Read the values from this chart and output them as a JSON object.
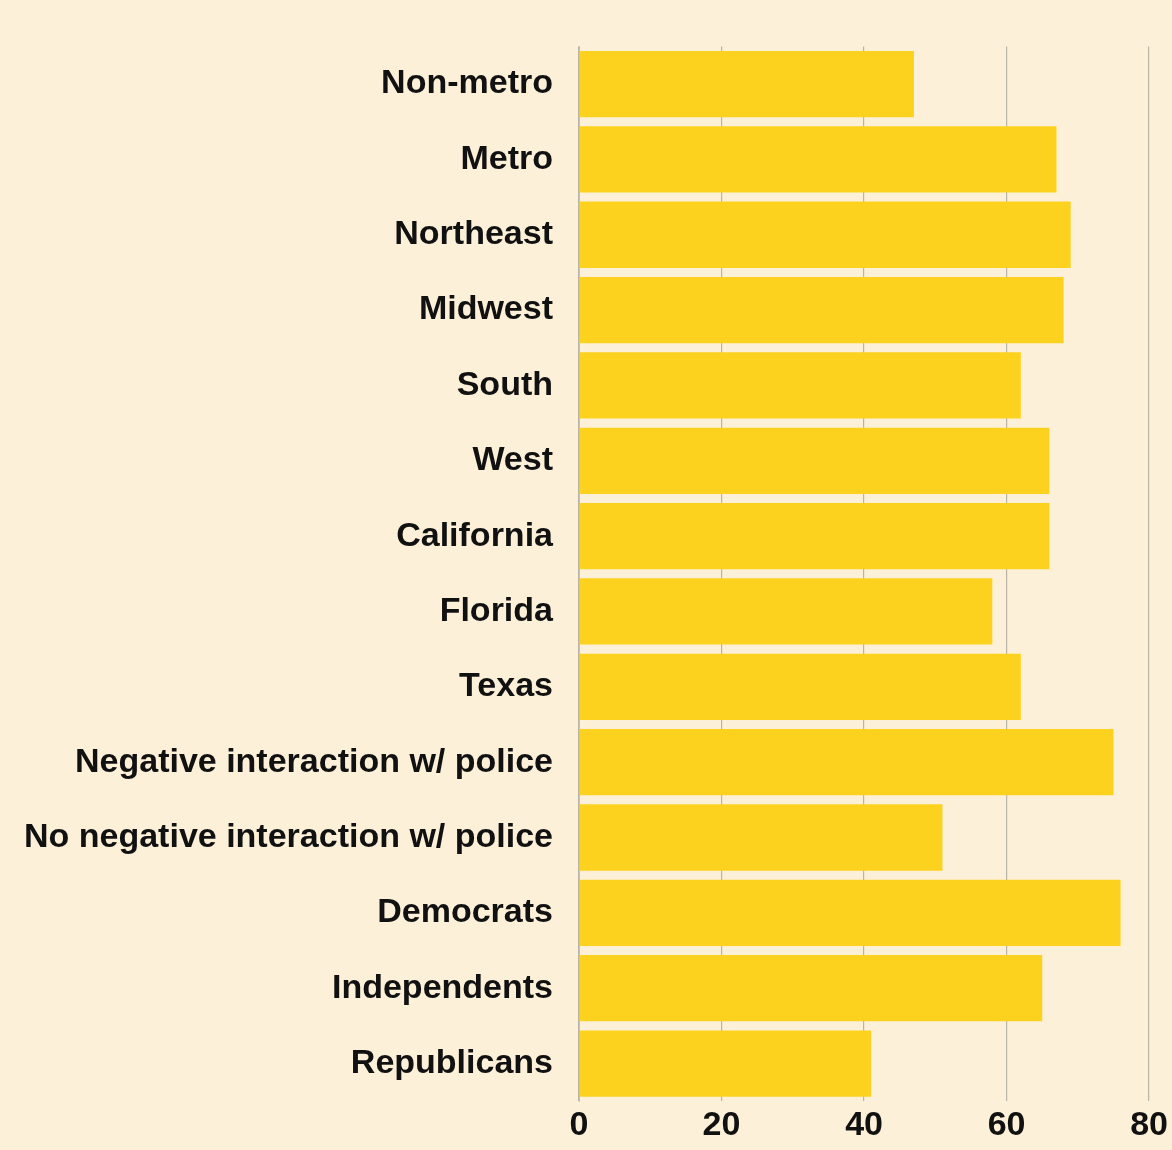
{
  "chart_data": {
    "type": "bar",
    "orientation": "horizontal",
    "categories": [
      "Non-metro",
      "Metro",
      "Northeast",
      "Midwest",
      "South",
      "West",
      "California",
      "Florida",
      "Texas",
      "Negative interaction w/ police",
      "No negative interaction w/ police",
      "Democrats",
      "Independents",
      "Republicans"
    ],
    "values": [
      47,
      67,
      69,
      68,
      62,
      66,
      66,
      58,
      62,
      75,
      51,
      76,
      65,
      41
    ],
    "color": "#fdd21f",
    "xlim": [
      0,
      80
    ],
    "xticks": [
      0,
      20,
      40,
      60,
      80
    ],
    "grid": "x",
    "legend": false
  }
}
